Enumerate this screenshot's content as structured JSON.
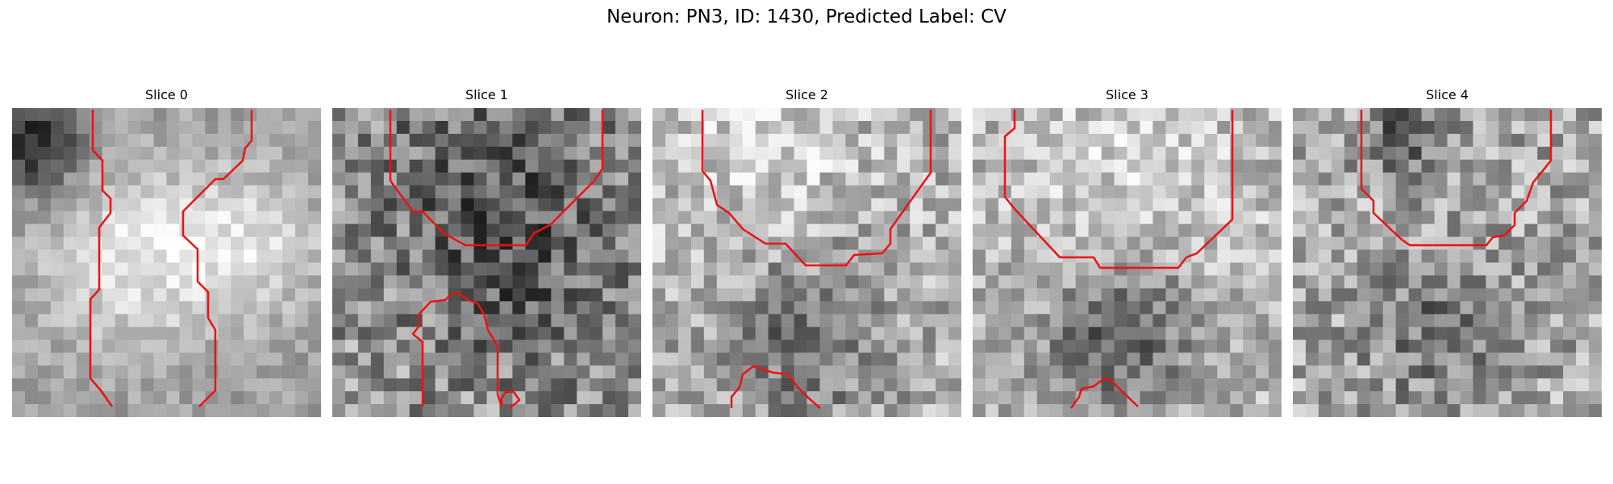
{
  "figure": {
    "title": "Neuron: PN3, ID: 1430, Predicted Label: CV"
  },
  "panels": [
    {
      "title": "Slice 0",
      "colormap": "grayscale",
      "contour_color": "#ee1111",
      "texture": "large bright blob on left-center and right-center, dark top-left corner"
    },
    {
      "title": "Slice 1",
      "colormap": "grayscale",
      "contour_color": "#ee1111",
      "texture": "darker noisy texture, dark band near top"
    },
    {
      "title": "Slice 2",
      "colormap": "grayscale",
      "contour_color": "#ee1111",
      "texture": "light upper half, darker lower-middle region"
    },
    {
      "title": "Slice 3",
      "colormap": "grayscale",
      "contour_color": "#ee1111",
      "texture": "light upper area, dark cluster lower-center"
    },
    {
      "title": "Slice 4",
      "colormap": "grayscale",
      "contour_color": "#ee1111",
      "texture": "fine noise, dark spot top-center and lower-center"
    }
  ]
}
